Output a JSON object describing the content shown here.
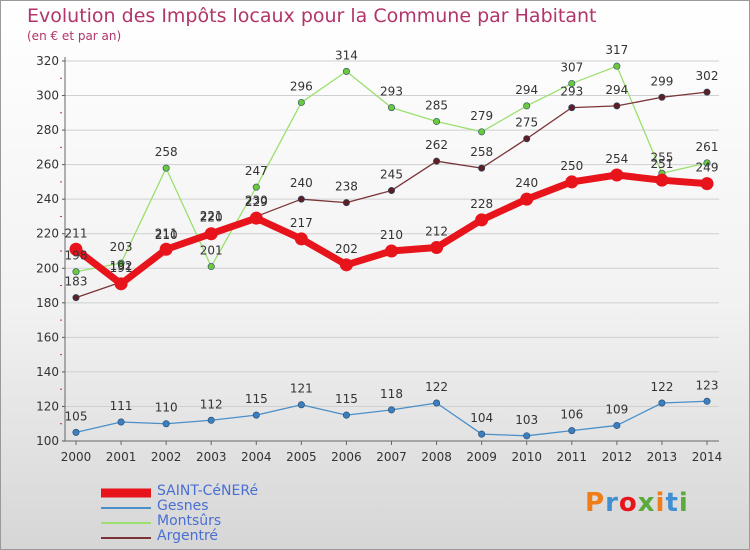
{
  "chart_data": {
    "type": "line",
    "title": "Evolution des Impôts locaux pour la Commune par Habitant",
    "subtitle": "(en € et par an)",
    "xlabel": "",
    "ylabel": "",
    "ylim": [
      100,
      320
    ],
    "yticks": [
      100,
      120,
      140,
      160,
      180,
      200,
      220,
      240,
      260,
      280,
      300,
      320
    ],
    "categories": [
      "2000",
      "2001",
      "2002",
      "2003",
      "2004",
      "2005",
      "2006",
      "2007",
      "2008",
      "2009",
      "2010",
      "2011",
      "2012",
      "2013",
      "2014"
    ],
    "grid": "horizontal",
    "legend_position": "bottom-left",
    "series": [
      {
        "name": "Gesnes",
        "color": "#4a8fc8",
        "marker": "#3a7fbf",
        "values": [
          105,
          111,
          110,
          112,
          115,
          121,
          115,
          118,
          122,
          104,
          103,
          106,
          109,
          122,
          123
        ]
      },
      {
        "name": "Montsûrs",
        "color": "#9be06f",
        "marker": "#6cc83c",
        "values": [
          198,
          203,
          258,
          201,
          247,
          296,
          314,
          293,
          285,
          279,
          294,
          307,
          317,
          255,
          261
        ]
      },
      {
        "name": "Argentré",
        "color": "#7a3438",
        "marker": "#5e1f24",
        "values": [
          183,
          192,
          210,
          221,
          230,
          240,
          238,
          245,
          262,
          258,
          275,
          293,
          294,
          299,
          302
        ]
      },
      {
        "name": "SAINT-CéNERé",
        "color": "#e8141b",
        "marker": "#e8141b",
        "bold": true,
        "values": [
          211,
          191,
          211,
          220,
          229,
          217,
          202,
          210,
          212,
          228,
          240,
          250,
          254,
          251,
          249
        ]
      }
    ],
    "legend_order": [
      "SAINT-CéNERé",
      "Gesnes",
      "Montsûrs",
      "Argentré"
    ]
  },
  "logo": {
    "text": "Proxiti",
    "colors": [
      "#f07d17",
      "#3f8fd2",
      "#e8141b",
      "#5aab3c",
      "#f07d17",
      "#3f8fd2",
      "#5aab3c"
    ]
  }
}
